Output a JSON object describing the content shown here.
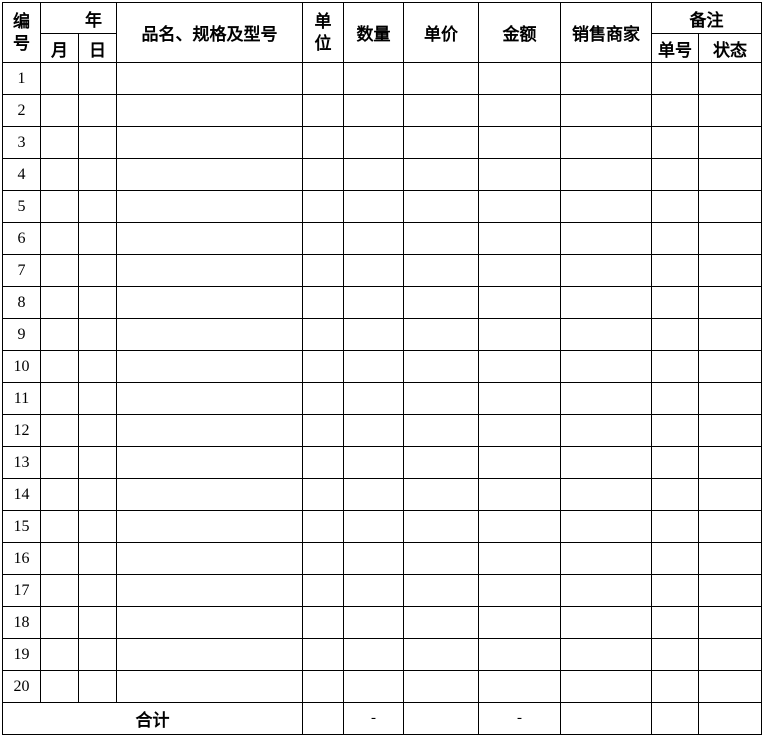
{
  "header": {
    "id": "编\n号",
    "year": "年",
    "month": "月",
    "day": "日",
    "name_spec": "品名、规格及型号",
    "unit": "单\n位",
    "quantity": "数量",
    "unit_price": "单价",
    "amount": "金额",
    "seller": "销售商家",
    "remarks": "备注",
    "order_no": "单号",
    "status": "状态"
  },
  "rows": [
    "1",
    "2",
    "3",
    "4",
    "5",
    "6",
    "7",
    "8",
    "9",
    "10",
    "11",
    "12",
    "13",
    "14",
    "15",
    "16",
    "17",
    "18",
    "19",
    "20"
  ],
  "total": {
    "label": "合计",
    "quantity": "-",
    "amount": "-"
  }
}
